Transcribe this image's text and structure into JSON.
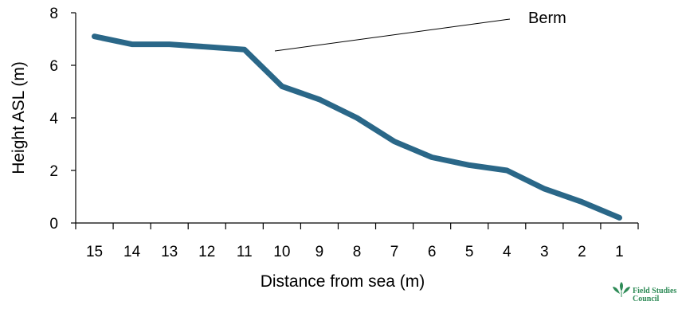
{
  "chart_data": {
    "type": "line",
    "x": [
      15,
      14,
      13,
      12,
      11,
      10,
      9,
      8,
      7,
      6,
      5,
      4,
      3,
      2,
      1
    ],
    "series": [
      {
        "values": [
          7.1,
          6.8,
          6.8,
          6.7,
          6.6,
          5.2,
          4.7,
          4.0,
          3.1,
          2.5,
          2.2,
          2.0,
          1.3,
          0.8,
          0.2
        ]
      }
    ],
    "xlabel": "Distance from sea (m)",
    "ylabel": "Height ASL (m)",
    "ylim": [
      0,
      8
    ],
    "yticks": [
      0,
      2,
      4,
      6,
      8
    ],
    "grid": false,
    "line_color": "#2a6788",
    "annotations": [
      {
        "text": "Berm"
      }
    ]
  },
  "logo": {
    "line1": "Field Studies",
    "line2": "Council",
    "color": "#2e8b57"
  }
}
